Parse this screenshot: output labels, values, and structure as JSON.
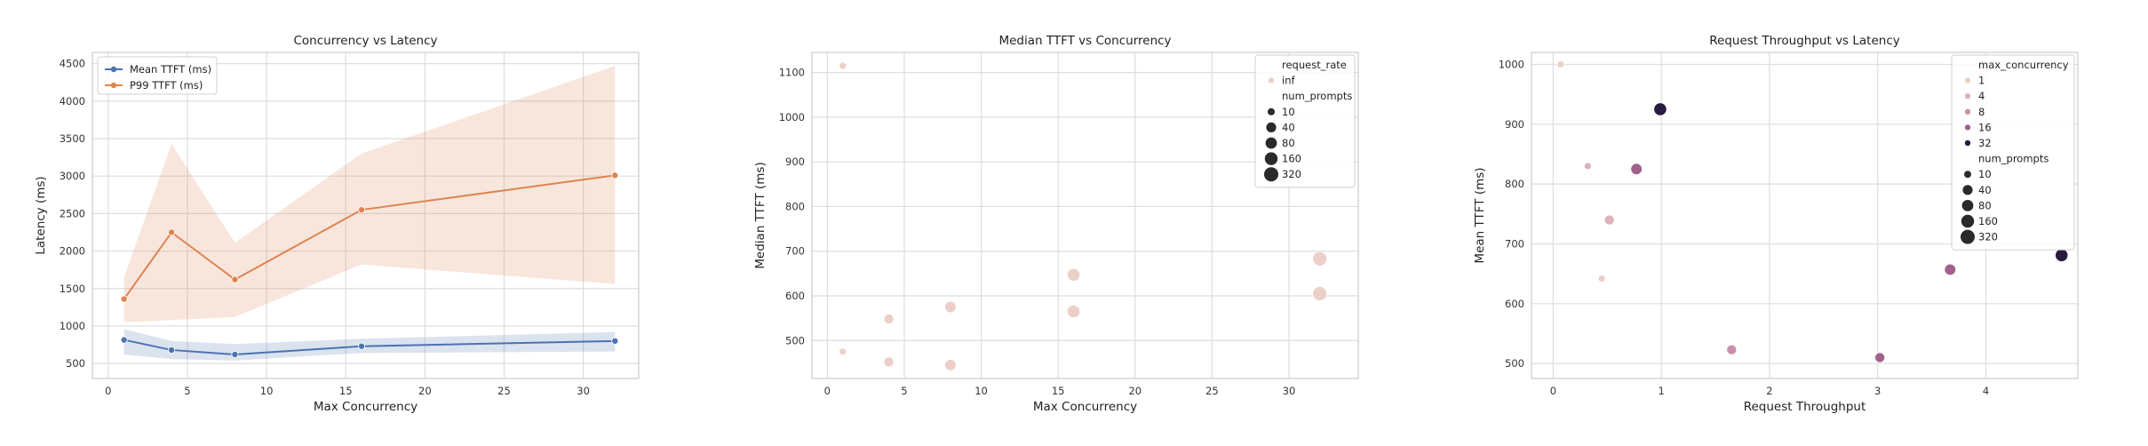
{
  "chart_data": [
    {
      "type": "line",
      "title": "Concurrency vs Latency",
      "xlabel": "Max Concurrency",
      "ylabel": "Latency (ms)",
      "xlim": [
        -1,
        33.5
      ],
      "ylim": [
        300,
        4650
      ],
      "xticks": [
        0,
        5,
        10,
        15,
        20,
        25,
        30
      ],
      "yticks": [
        500,
        1000,
        1500,
        2000,
        2500,
        3000,
        3500,
        4000,
        4500
      ],
      "grid": true,
      "legend": "top-left",
      "x": [
        1,
        4,
        8,
        16,
        32
      ],
      "series": [
        {
          "name": "Mean TTFT (ms)",
          "color": "#4c72b0",
          "values": [
            815,
            680,
            620,
            730,
            800
          ],
          "band_low": [
            620,
            560,
            540,
            640,
            660
          ],
          "band_high": [
            960,
            800,
            760,
            830,
            920
          ]
        },
        {
          "name": "P99 TTFT (ms)",
          "color": "#dd8452",
          "values": [
            1360,
            2250,
            1620,
            2550,
            3010
          ],
          "band_low": [
            1050,
            1080,
            1120,
            1820,
            1560
          ],
          "band_high": [
            1650,
            3430,
            2110,
            3300,
            4470
          ]
        }
      ]
    },
    {
      "type": "scatter",
      "title": "Median TTFT vs Concurrency",
      "xlabel": "Max Concurrency",
      "ylabel": "Median TTFT (ms)",
      "xlim": [
        -1,
        34.5
      ],
      "ylim": [
        415,
        1145
      ],
      "xticks": [
        0,
        5,
        10,
        15,
        20,
        25,
        30
      ],
      "yticks": [
        500,
        600,
        700,
        800,
        900,
        1000,
        1100
      ],
      "grid": true,
      "legend": "top-right",
      "hue_title": "request_rate",
      "hue_entries": [
        {
          "label": "inf",
          "color": "#ecd0c7"
        }
      ],
      "size_title": "num_prompts",
      "size_entries": [
        {
          "label": "10",
          "value": 10
        },
        {
          "label": "40",
          "value": 40
        },
        {
          "label": "80",
          "value": 80
        },
        {
          "label": "160",
          "value": 160
        },
        {
          "label": "320",
          "value": 320
        }
      ],
      "points": [
        {
          "x": 1,
          "y": 1115,
          "size": 10
        },
        {
          "x": 1,
          "y": 475,
          "size": 10
        },
        {
          "x": 4,
          "y": 548,
          "size": 40
        },
        {
          "x": 4,
          "y": 452,
          "size": 40
        },
        {
          "x": 8,
          "y": 575,
          "size": 80
        },
        {
          "x": 8,
          "y": 445,
          "size": 80
        },
        {
          "x": 16,
          "y": 647,
          "size": 160
        },
        {
          "x": 16,
          "y": 565,
          "size": 160
        },
        {
          "x": 32,
          "y": 683,
          "size": 320
        },
        {
          "x": 32,
          "y": 605,
          "size": 320
        }
      ]
    },
    {
      "type": "scatter",
      "title": "Request Throughput vs Latency",
      "xlabel": "Request Throughput",
      "ylabel": "Mean TTFT (ms)",
      "xlim": [
        -0.2,
        4.85
      ],
      "ylim": [
        475,
        1020
      ],
      "xticks": [
        0,
        1,
        2,
        3,
        4
      ],
      "yticks": [
        500,
        600,
        700,
        800,
        900,
        1000
      ],
      "grid": true,
      "legend": "top-right",
      "hue_title": "max_concurrency",
      "hue_entries": [
        {
          "label": "1",
          "value": 1,
          "color": "#ecd0c7"
        },
        {
          "label": "4",
          "value": 4,
          "color": "#dcb2bc"
        },
        {
          "label": "8",
          "value": 8,
          "color": "#c890ac"
        },
        {
          "label": "16",
          "value": 16,
          "color": "#a0628a"
        },
        {
          "label": "32",
          "value": 32,
          "color": "#2b1a3f"
        }
      ],
      "size_title": "num_prompts",
      "size_entries": [
        {
          "label": "10",
          "value": 10
        },
        {
          "label": "40",
          "value": 40
        },
        {
          "label": "80",
          "value": 80
        },
        {
          "label": "160",
          "value": 160
        },
        {
          "label": "320",
          "value": 320
        }
      ],
      "points": [
        {
          "x": 0.07,
          "y": 1000,
          "hue": 1,
          "size": 10
        },
        {
          "x": 0.32,
          "y": 830,
          "hue": 4,
          "size": 10
        },
        {
          "x": 0.45,
          "y": 642,
          "hue": 1,
          "size": 10
        },
        {
          "x": 0.52,
          "y": 740,
          "hue": 4,
          "size": 40
        },
        {
          "x": 0.77,
          "y": 825,
          "hue": 16,
          "size": 80
        },
        {
          "x": 0.99,
          "y": 925,
          "hue": 32,
          "size": 160
        },
        {
          "x": 1.65,
          "y": 523,
          "hue": 8,
          "size": 40
        },
        {
          "x": 3.02,
          "y": 510,
          "hue": 16,
          "size": 40
        },
        {
          "x": 3.67,
          "y": 657,
          "hue": 16,
          "size": 80
        },
        {
          "x": 4.7,
          "y": 681,
          "hue": 32,
          "size": 160
        }
      ]
    }
  ]
}
